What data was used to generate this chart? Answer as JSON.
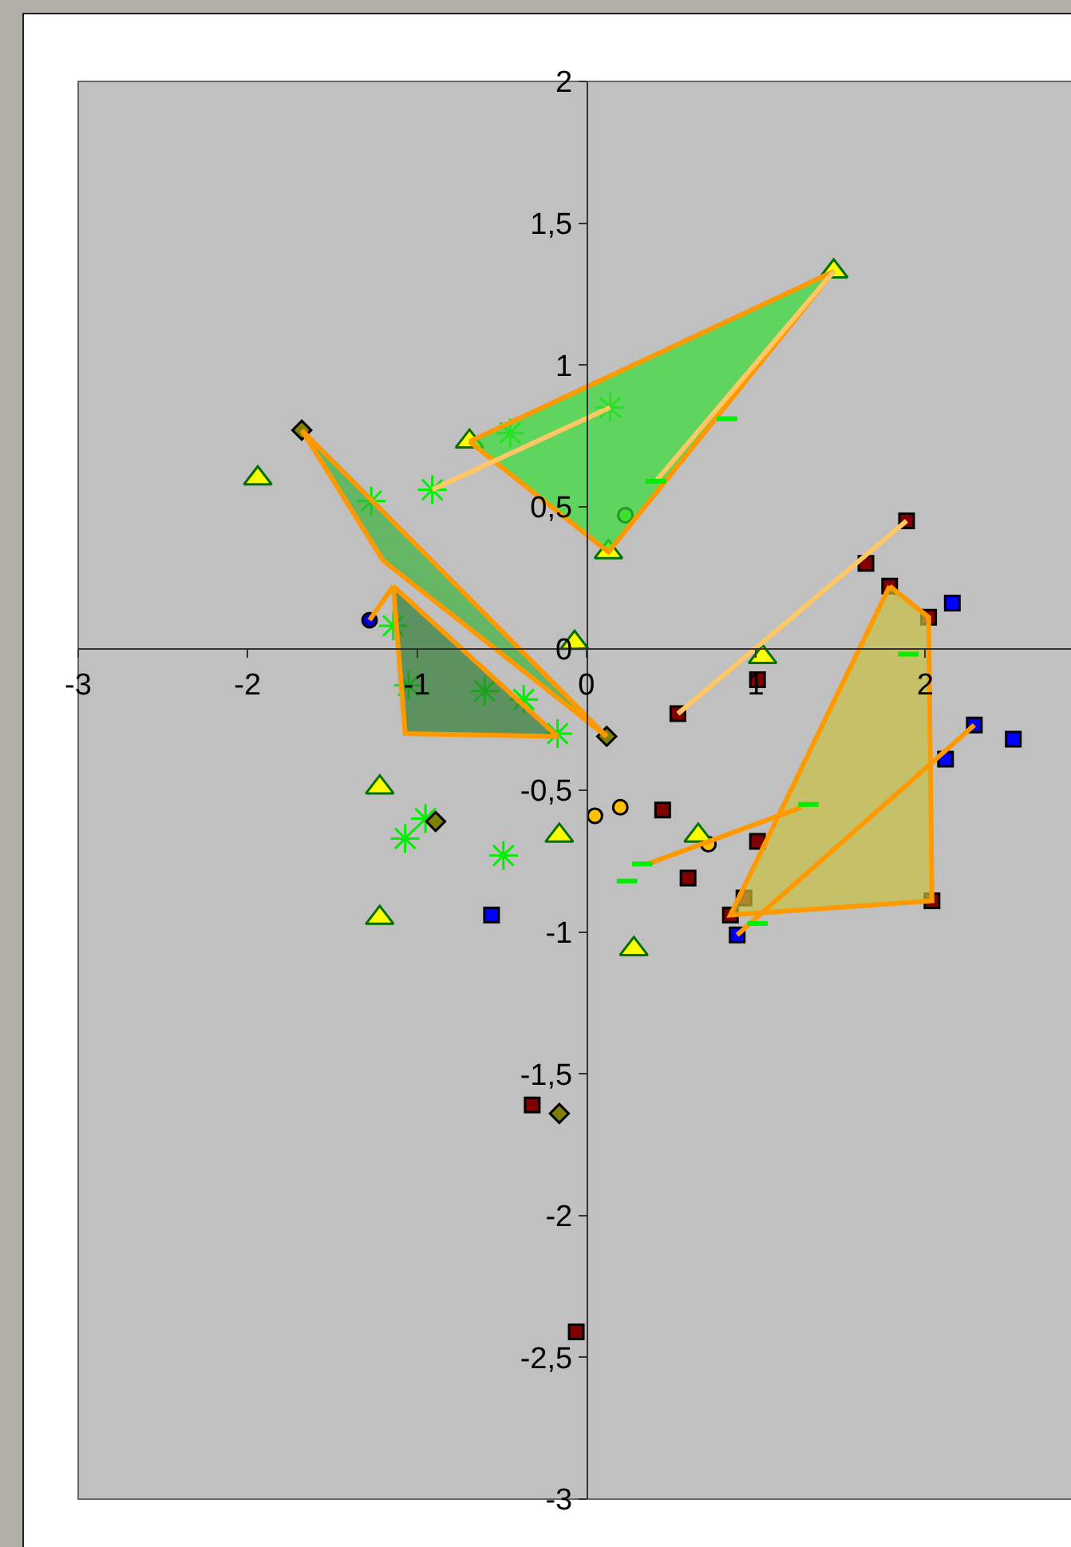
{
  "chart_data": {
    "type": "scatter",
    "xlim": [
      -3,
      2.87
    ],
    "ylim": [
      -3,
      2
    ],
    "xticks": [
      -3,
      -2,
      -1,
      0,
      1,
      2
    ],
    "yticks": [
      -3,
      {
        "value": -2.5,
        "label": "-2,5"
      },
      -2,
      {
        "value": -1.5,
        "label": "-1,5"
      },
      -1,
      {
        "value": -0.5,
        "label": "-0,5"
      },
      0,
      {
        "value": 0.5,
        "label": "0,5"
      },
      1,
      {
        "value": 1.5,
        "label": "1,5"
      },
      2
    ],
    "grid": false,
    "series": [
      {
        "type": "area",
        "color": "#33dd33",
        "x": [
          -0.69,
          1.46,
          0.13,
          -0.69
        ],
        "values": [
          0.73,
          1.33,
          0.34,
          0.73
        ]
      },
      {
        "type": "area",
        "color": "#3ab03a",
        "x": [
          -1.68,
          0.12,
          -1.2,
          -1.68
        ],
        "values": [
          0.77,
          -0.31,
          0.31,
          0.77
        ]
      },
      {
        "type": "area",
        "color": "#2e7d32",
        "x": [
          -1.14,
          -1.07,
          -0.17,
          -1.14
        ],
        "values": [
          0.22,
          -0.3,
          -0.31,
          0.22
        ]
      },
      {
        "type": "area",
        "color": "#c8c040",
        "x": [
          1.79,
          2.02,
          2.04,
          0.85,
          1.79
        ],
        "values": [
          0.22,
          0.11,
          -0.89,
          -0.94,
          0.22
        ]
      },
      {
        "type": "line",
        "color": "#ffc864",
        "x": [
          -0.91,
          0.14
        ],
        "values": [
          0.56,
          0.85
        ]
      },
      {
        "type": "line",
        "color": "#ffc864",
        "x": [
          0.41,
          1.46
        ],
        "values": [
          0.59,
          1.33
        ]
      },
      {
        "type": "line",
        "color": "#ffc864",
        "x": [
          0.54,
          1.89
        ],
        "values": [
          -0.23,
          0.45
        ]
      },
      {
        "type": "line",
        "color": "#ff9900",
        "x": [
          -1.28,
          -1.14
        ],
        "values": [
          0.1,
          0.22
        ]
      },
      {
        "type": "line",
        "color": "#ff9900",
        "x": [
          0.89,
          2.29
        ],
        "values": [
          -1.01,
          -0.27
        ]
      },
      {
        "type": "line",
        "color": "#ff9900",
        "x": [
          0.36,
          1.27
        ],
        "values": [
          -0.76,
          -0.56
        ]
      },
      {
        "marker": "cross",
        "color": "#00ee00",
        "x": [
          0.14,
          -0.91,
          -1.27,
          -1.14,
          -1.05,
          -0.6,
          -0.37,
          -0.17,
          -1.07,
          -0.95,
          -0.49,
          -0.45
        ],
        "values": [
          0.85,
          0.56,
          0.52,
          0.08,
          -0.13,
          -0.15,
          -0.18,
          -0.3,
          -0.67,
          -0.6,
          -0.73,
          0.76
        ]
      },
      {
        "marker": "square",
        "color": "#800000",
        "x": [
          1.89,
          1.65,
          1.79,
          2.02,
          0.54,
          1.01,
          0.45,
          1.01,
          0.6,
          0.93,
          0.85,
          2.04,
          -0.32,
          -0.06
        ],
        "values": [
          0.45,
          0.3,
          0.22,
          0.11,
          -0.23,
          -0.11,
          -0.57,
          -0.68,
          -0.81,
          -0.88,
          -0.94,
          -0.89,
          -1.61,
          -2.41
        ]
      },
      {
        "marker": "square",
        "color": "#0000ff",
        "x": [
          2.16,
          2.29,
          2.52,
          2.12,
          0.89,
          -0.56
        ],
        "values": [
          0.16,
          -0.27,
          -0.32,
          -0.39,
          -1.01,
          -0.94
        ]
      },
      {
        "marker": "diamond",
        "color": "#808000",
        "x": [
          -1.68,
          0.12,
          -0.89,
          -0.16
        ],
        "values": [
          0.77,
          -0.31,
          -0.61,
          -1.64
        ]
      },
      {
        "marker": "circle",
        "color": "#ffc000",
        "x": [
          0.05,
          0.2,
          0.72
        ],
        "values": [
          -0.59,
          -0.56,
          -0.69
        ]
      },
      {
        "marker": "circle",
        "color": "#0000cc",
        "x": [
          -1.28
        ],
        "values": [
          0.1
        ]
      },
      {
        "marker": "circle",
        "color": "#66dd22",
        "x": [
          0.23
        ],
        "values": [
          0.47
        ]
      },
      {
        "type": "line",
        "color": "#00ee00",
        "x": [
          0.35,
          0.47,
          null,
          0.77,
          0.89,
          null,
          0.27,
          0.39,
          null,
          0.18,
          0.3,
          null,
          1.25,
          1.37,
          null,
          1.84,
          1.96,
          null,
          0.95,
          1.07
        ],
        "values": [
          0.59,
          0.59,
          null,
          0.81,
          0.81,
          null,
          -0.76,
          -0.76,
          null,
          -0.82,
          -0.82,
          null,
          -0.55,
          -0.55,
          null,
          -0.02,
          -0.02,
          null,
          -0.97,
          -0.97
        ]
      },
      {
        "marker": "triangle",
        "color": "#ffff00",
        "x": [
          1.46,
          -0.69,
          0.13,
          -1.94,
          -0.07,
          1.04,
          -1.22,
          -0.16,
          0.66,
          -1.22,
          0.28
        ],
        "values": [
          1.33,
          0.73,
          0.34,
          0.6,
          0.02,
          -0.03,
          -0.49,
          -0.66,
          -0.66,
          -0.95,
          -1.06
        ]
      }
    ]
  }
}
